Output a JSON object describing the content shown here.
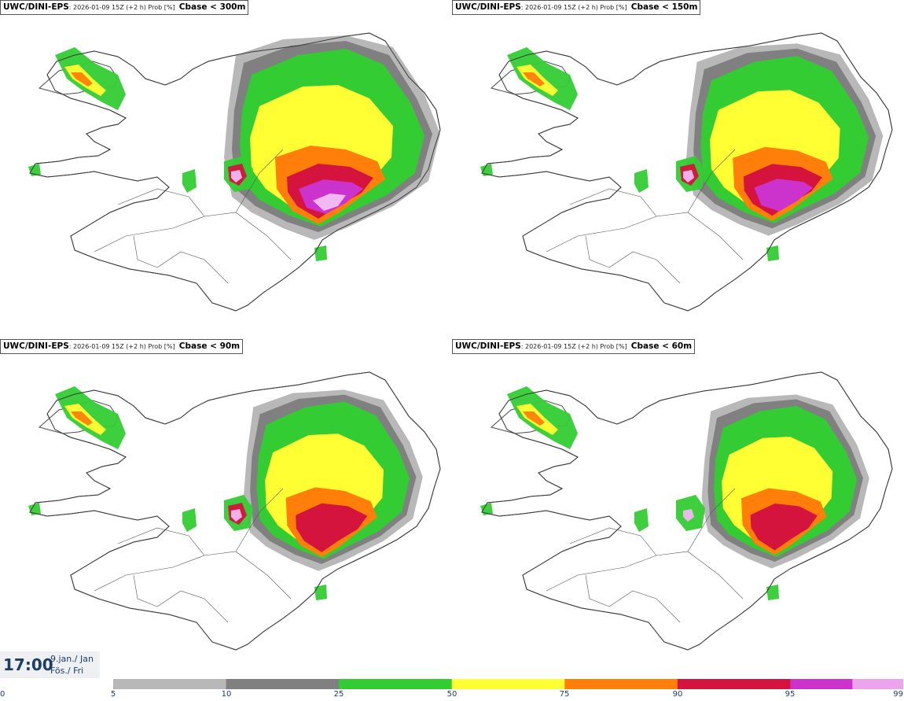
{
  "panels": [
    {
      "model": "UWC/DINI-EPS",
      "info": ": 2026-01-09 15Z (+2 h) Prob [%]",
      "threshold": "Cbase < 300m",
      "intensity": 1.0
    },
    {
      "model": "UWC/DINI-EPS",
      "info": ": 2026-01-09 15Z (+2 h) Prob [%]",
      "threshold": "Cbase < 150m",
      "intensity": 0.8
    },
    {
      "model": "UWC/DINI-EPS",
      "info": ": 2026-01-09 15Z (+2 h) Prob [%]",
      "threshold": "Cbase < 90m",
      "intensity": 0.62
    },
    {
      "model": "UWC/DINI-EPS",
      "info": ": 2026-01-09 15Z (+2 h) Prob [%]",
      "threshold": "Cbase < 60m",
      "intensity": 0.5
    }
  ],
  "time": {
    "clock": "17:00",
    "date_line": "9.jan./ Jan",
    "day_line": "Fös./ Fri"
  },
  "legend": {
    "ticks": [
      "0",
      "5",
      "10",
      "25",
      "50",
      "75",
      "90",
      "95",
      "99"
    ],
    "bins": [
      {
        "from": 5,
        "to": 10,
        "color": "#b8b8b8"
      },
      {
        "from": 10,
        "to": 25,
        "color": "#808080"
      },
      {
        "from": 25,
        "to": 50,
        "color": "#33cc33"
      },
      {
        "from": 50,
        "to": 75,
        "color": "#ffff33"
      },
      {
        "from": 75,
        "to": 90,
        "color": "#ff7f0a"
      },
      {
        "from": 90,
        "to": 95,
        "color": "#d4143c"
      },
      {
        "from": 95,
        "to": 99,
        "color": "#cc33cc"
      },
      {
        "from": 99,
        "to": 100,
        "color": "#f2b8f2"
      }
    ]
  }
}
